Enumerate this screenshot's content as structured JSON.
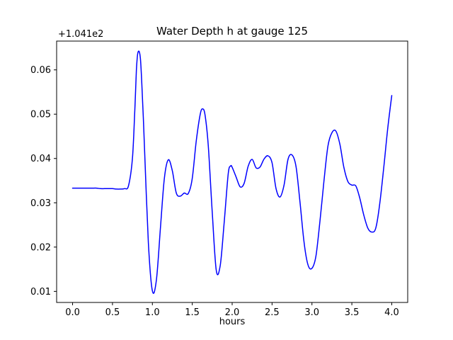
{
  "figure": {
    "title": "Water Depth h at gauge 125",
    "xlabel": "hours",
    "offset_text": "+1.041e2",
    "background": "#ffffff",
    "spine_color": "#000000"
  },
  "chart_data": {
    "type": "line",
    "title": "Water Depth h at gauge 125",
    "xlabel": "hours",
    "ylabel": "",
    "y_offset_label": "+1.041e2",
    "grid": false,
    "legend_position": "none",
    "xlim": [
      -0.2,
      4.2
    ],
    "ylim": [
      0.0075,
      0.0665
    ],
    "xticks": [
      0.0,
      0.5,
      1.0,
      1.5,
      2.0,
      2.5,
      3.0,
      3.5,
      4.0
    ],
    "xtick_labels": [
      "0.0",
      "0.5",
      "1.0",
      "1.5",
      "2.0",
      "2.5",
      "3.0",
      "3.5",
      "4.0"
    ],
    "yticks": [
      0.01,
      0.02,
      0.03,
      0.04,
      0.05,
      0.06
    ],
    "ytick_labels": [
      "0.01",
      "0.02",
      "0.03",
      "0.04",
      "0.05",
      "0.06"
    ],
    "series": [
      {
        "name": "water-depth-h",
        "color": "#0000ff",
        "x": [
          0.0,
          0.05,
          0.1,
          0.15,
          0.2,
          0.25,
          0.3,
          0.35,
          0.4,
          0.45,
          0.5,
          0.55,
          0.6,
          0.65,
          0.7,
          0.75,
          0.78,
          0.8,
          0.82,
          0.85,
          0.88,
          0.9,
          0.95,
          1.0,
          1.05,
          1.1,
          1.15,
          1.2,
          1.25,
          1.3,
          1.35,
          1.4,
          1.45,
          1.5,
          1.55,
          1.6,
          1.63,
          1.66,
          1.7,
          1.75,
          1.8,
          1.85,
          1.9,
          1.95,
          1.98,
          2.0,
          2.05,
          2.1,
          2.15,
          2.2,
          2.25,
          2.3,
          2.35,
          2.4,
          2.45,
          2.5,
          2.55,
          2.6,
          2.65,
          2.7,
          2.75,
          2.8,
          2.85,
          2.9,
          2.95,
          3.0,
          3.05,
          3.1,
          3.15,
          3.2,
          3.25,
          3.3,
          3.35,
          3.4,
          3.45,
          3.5,
          3.55,
          3.6,
          3.65,
          3.7,
          3.75,
          3.8,
          3.85,
          3.9,
          3.95,
          4.0
        ],
        "y": [
          0.0333,
          0.0333,
          0.0333,
          0.0333,
          0.0333,
          0.0333,
          0.0333,
          0.0332,
          0.0332,
          0.0332,
          0.0332,
          0.0331,
          0.0331,
          0.0332,
          0.0338,
          0.04,
          0.051,
          0.06,
          0.064,
          0.0625,
          0.052,
          0.043,
          0.021,
          0.0101,
          0.0125,
          0.024,
          0.0355,
          0.0397,
          0.0372,
          0.0322,
          0.0315,
          0.0322,
          0.0321,
          0.0355,
          0.044,
          0.05,
          0.0512,
          0.0498,
          0.043,
          0.028,
          0.0148,
          0.0158,
          0.0255,
          0.0365,
          0.0383,
          0.038,
          0.0358,
          0.0336,
          0.0344,
          0.0382,
          0.0398,
          0.0379,
          0.0381,
          0.0399,
          0.0406,
          0.039,
          0.0332,
          0.0313,
          0.034,
          0.0398,
          0.0408,
          0.0382,
          0.0302,
          0.0212,
          0.016,
          0.0152,
          0.018,
          0.0258,
          0.0348,
          0.0428,
          0.0458,
          0.0462,
          0.0432,
          0.038,
          0.0348,
          0.034,
          0.0338,
          0.031,
          0.0272,
          0.0243,
          0.0234,
          0.0243,
          0.0298,
          0.038,
          0.0468,
          0.0542
        ]
      }
    ]
  }
}
